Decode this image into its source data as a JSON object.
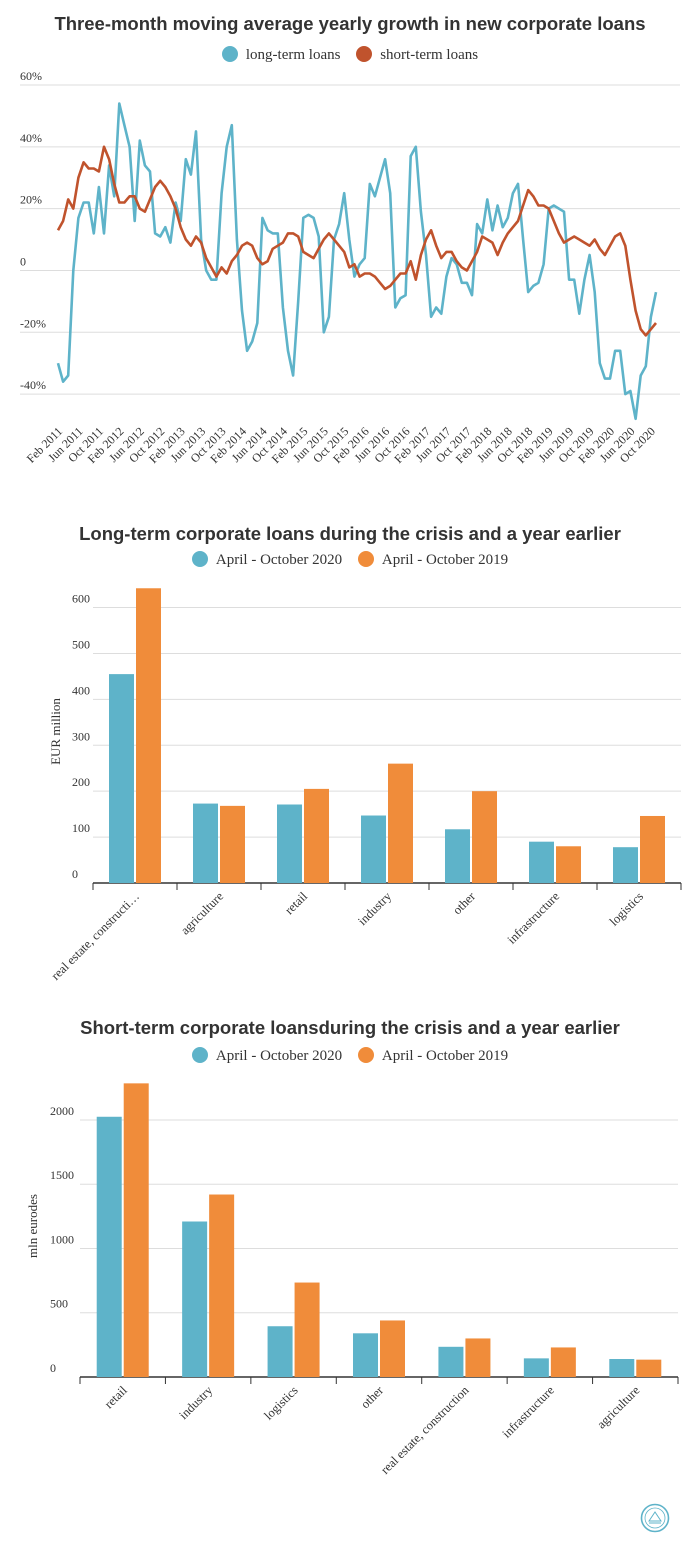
{
  "charts": [
    {
      "type": "line",
      "title": "Three-month moving average yearly growth in new corporate loans",
      "legend_placement": "top-center",
      "grid": true,
      "ylim": [
        -50,
        60
      ],
      "y_ticks": [
        -40,
        -20,
        0,
        20,
        40,
        60
      ],
      "y_tick_labels": [
        "-40%",
        "-20%",
        "0",
        "20%",
        "40%",
        "60%"
      ],
      "x_tick_labels": [
        "Feb 2011",
        "Jun 2011",
        "Oct 2011",
        "Feb 2012",
        "Jun 2012",
        "Oct 2012",
        "Feb 2013",
        "Jun 2013",
        "Oct 2013",
        "Feb 2014",
        "Jun 2014",
        "Oct 2014",
        "Feb 2015",
        "Jun 2015",
        "Oct 2015",
        "Feb 2016",
        "Jun 2016",
        "Oct 2016",
        "Feb 2017",
        "Jun 2017",
        "Oct 2017",
        "Feb 2018",
        "Jun 2018",
        "Oct 2018",
        "Feb 2019",
        "Jun 2019",
        "Oct 2019",
        "Feb 2020",
        "Jun 2020",
        "Oct 2020"
      ],
      "x_range": [
        "Feb 2011",
        "Dec 2020"
      ],
      "series": [
        {
          "name": "long-term loans",
          "color": "#5eb3c9",
          "values": [
            -30,
            -36,
            -34,
            0,
            17,
            22,
            22,
            12,
            27,
            12,
            34,
            24,
            54,
            47,
            40,
            16,
            42,
            34,
            32,
            12,
            11,
            14,
            9,
            22,
            16,
            36,
            31,
            45,
            10,
            0,
            -3,
            -3,
            25,
            40,
            47,
            10,
            -13,
            -26,
            -23,
            -17,
            17,
            13,
            12,
            12,
            -12,
            -26,
            -34,
            -10,
            17,
            18,
            17,
            11,
            -20,
            -15,
            10,
            15,
            25,
            10,
            -2,
            2,
            4,
            28,
            24,
            30,
            36,
            25,
            -12,
            -9,
            -8,
            37,
            40,
            19,
            5,
            -15,
            -12,
            -14,
            -2,
            4,
            2,
            -4,
            -4,
            -8,
            15,
            12,
            23,
            13,
            21,
            14,
            17,
            25,
            28,
            10,
            -7,
            -5,
            -4,
            2,
            20,
            21,
            20,
            19,
            -3,
            -3,
            -14,
            -3,
            5,
            -7,
            -30,
            -35,
            -35,
            -26,
            -26,
            -40,
            -39,
            -48,
            -34,
            -31,
            -15,
            -7
          ]
        },
        {
          "name": "short-term loans",
          "color": "#c0532d",
          "values": [
            13,
            16,
            23,
            20,
            30,
            35,
            33,
            33,
            32,
            40,
            36,
            28,
            22,
            22,
            24,
            24,
            20,
            19,
            23,
            27,
            29,
            27,
            24,
            20,
            14,
            10,
            8,
            11,
            9,
            4,
            1,
            -2,
            1,
            -1,
            3,
            5,
            8,
            9,
            8,
            4,
            2,
            3,
            7,
            8,
            9,
            12,
            12,
            11,
            6,
            5,
            4,
            7,
            10,
            12,
            10,
            8,
            6,
            1,
            2,
            -2,
            -1,
            -1,
            -2,
            -4,
            -6,
            -5,
            -3,
            -1,
            -1,
            3,
            -3,
            5,
            10,
            13,
            8,
            4,
            6,
            6,
            3,
            1,
            0,
            3,
            6,
            11,
            10,
            9,
            5,
            9,
            12,
            14,
            16,
            21,
            26,
            24,
            21,
            21,
            20,
            16,
            12,
            9,
            10,
            11,
            10,
            9,
            8,
            10,
            7,
            5,
            8,
            11,
            12,
            8,
            -3,
            -13,
            -19,
            -21,
            -19,
            -17
          ]
        }
      ]
    },
    {
      "type": "bar",
      "title": "Long-term corporate loans during the crisis and a year earlier",
      "legend_placement": "top-center",
      "grid": true,
      "ylabel": "EUR million",
      "ylim": [
        0,
        660
      ],
      "y_ticks": [
        0,
        100,
        200,
        300,
        400,
        500,
        600
      ],
      "categories": [
        "real estate, constructi…",
        "agriculture",
        "retail",
        "industry",
        "other",
        "infrastructure",
        "logistics"
      ],
      "series": [
        {
          "name": "April - October 2020",
          "color": "#5eb3c9",
          "values": [
            455,
            173,
            171,
            147,
            117,
            90,
            78
          ]
        },
        {
          "name": "April - October 2019",
          "color": "#f08c3a",
          "values": [
            642,
            168,
            205,
            260,
            200,
            80,
            146
          ]
        }
      ]
    },
    {
      "type": "bar",
      "title": "Short-term corporate loansduring the crisis and a year earlier",
      "legend_placement": "top-center",
      "grid": true,
      "ylabel": "mln eurodes",
      "ylim": [
        0,
        2350
      ],
      "y_ticks": [
        0,
        500,
        1000,
        1500,
        2000
      ],
      "categories": [
        "retail",
        "industry",
        "logistics",
        "other",
        "real estate, construction",
        "infrastructure",
        "agriculture"
      ],
      "series": [
        {
          "name": "April - October 2020",
          "color": "#5eb3c9",
          "values": [
            2025,
            1210,
            395,
            340,
            235,
            145,
            140
          ]
        },
        {
          "name": "April - October 2019",
          "color": "#f08c3a",
          "values": [
            2285,
            1420,
            735,
            440,
            300,
            230,
            135
          ]
        }
      ]
    }
  ]
}
